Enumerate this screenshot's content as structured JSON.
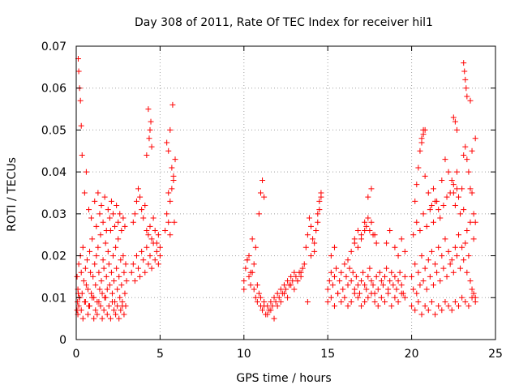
{
  "chart_data": {
    "type": "scatter",
    "title": "Day 308 of 2011, Rate Of TEC Index for receiver hil1",
    "xlabel": "GPS time / hours",
    "ylabel": "ROTI / TECUs",
    "xlim": [
      0,
      25
    ],
    "ylim": [
      0,
      0.07
    ],
    "xticks": [
      "0",
      "5",
      "10",
      "15",
      "20",
      "25"
    ],
    "yticks": [
      "0",
      "0.01",
      "0.02",
      "0.03",
      "0.04",
      "0.05",
      "0.06",
      "0.07"
    ],
    "grid": true,
    "marker": "plus",
    "color": "#ff0000",
    "series": [
      {
        "x": [
          0.05,
          0.1,
          0.15,
          0.2,
          0.25,
          0.3,
          0.35,
          0.4,
          0.45,
          0.5,
          0.55,
          0.6,
          0.65,
          0.7,
          0.75,
          0.8,
          0.85,
          0.9,
          0.95,
          1.0,
          1.05,
          1.1,
          1.15,
          1.2,
          1.25,
          1.3,
          1.35,
          1.4,
          1.45,
          1.5,
          1.55,
          1.6,
          1.65,
          1.7,
          1.75,
          1.8,
          1.85,
          1.9,
          1.95,
          2.0,
          2.05,
          2.1,
          2.15,
          2.2,
          2.25,
          2.3,
          2.35,
          2.4,
          2.45,
          2.5,
          2.55,
          2.6,
          2.65,
          2.7,
          2.75,
          2.8,
          2.85,
          2.9,
          2.95,
          3.0,
          0.12,
          0.15,
          0.2,
          0.25,
          0.3,
          0.35,
          0.5,
          0.6,
          0.75,
          0.9,
          1.1,
          1.2,
          1.3,
          1.4,
          1.5,
          1.6,
          1.7,
          1.8,
          1.9,
          2.0,
          2.1,
          2.2,
          2.3,
          2.4,
          2.5,
          2.6,
          2.7,
          2.8,
          2.9,
          0.05,
          0.08,
          0.1,
          0.12,
          0.15,
          0.18,
          0.3,
          0.4,
          0.55,
          0.7,
          0.8,
          0.95,
          1.05,
          1.15,
          1.25,
          1.35,
          1.45,
          1.55,
          1.65,
          1.75,
          1.85,
          1.95,
          2.05,
          2.15,
          2.25,
          2.35,
          2.45,
          2.55,
          2.65,
          2.75,
          2.85,
          2.95,
          3.3,
          3.4,
          3.5,
          3.6,
          3.7,
          3.8,
          3.9,
          4.0,
          4.1,
          4.2,
          4.3,
          4.4,
          4.5,
          4.6,
          4.7,
          4.8,
          4.9,
          5.0,
          3.4,
          3.5,
          3.6,
          3.7,
          3.8,
          3.9,
          4.0,
          4.1,
          4.2,
          4.3,
          4.4,
          4.5,
          4.6,
          4.7,
          4.8,
          4.9,
          5.0,
          4.3,
          4.4,
          4.5,
          4.2,
          4.35,
          4.45,
          5.3,
          5.4,
          5.5,
          5.6,
          5.7,
          5.8,
          5.9,
          5.4,
          5.5,
          5.6,
          5.7,
          5.8,
          5.5,
          5.6,
          5.75,
          5.85,
          10.0,
          10.1,
          10.2,
          10.3,
          10.4,
          10.5,
          10.6,
          10.7,
          10.8,
          10.9,
          11.0,
          11.1,
          11.2,
          11.3,
          11.4,
          11.5,
          11.6,
          11.7,
          11.8,
          11.9,
          12.0,
          12.1,
          12.2,
          12.3,
          12.4,
          12.5,
          12.6,
          12.7,
          12.8,
          12.9,
          13.0,
          13.1,
          13.2,
          13.3,
          13.4,
          13.5,
          10.0,
          10.2,
          10.4,
          10.6,
          10.8,
          11.0,
          11.2,
          11.4,
          11.6,
          11.8,
          12.0,
          12.2,
          12.4,
          12.6,
          12.8,
          13.0,
          13.2,
          13.4,
          10.3,
          10.5,
          10.7,
          10.9,
          11.0,
          11.1,
          11.2,
          13.6,
          13.7,
          13.8,
          13.9,
          14.0,
          14.1,
          14.2,
          14.3,
          14.4,
          14.5,
          14.6,
          13.8,
          14.0,
          14.2,
          14.4,
          14.5,
          14.6,
          15.0,
          15.1,
          15.2,
          15.3,
          15.4,
          15.5,
          15.6,
          15.7,
          15.8,
          15.9,
          16.0,
          16.1,
          16.2,
          16.3,
          16.4,
          16.5,
          16.6,
          16.7,
          16.8,
          16.9,
          17.0,
          17.1,
          17.2,
          17.3,
          17.4,
          17.5,
          17.6,
          17.7,
          17.8,
          17.9,
          18.0,
          18.1,
          18.2,
          18.3,
          18.4,
          18.5,
          18.6,
          18.7,
          18.8,
          18.9,
          19.0,
          19.1,
          19.2,
          19.3,
          19.4,
          19.5,
          19.6,
          15.0,
          15.2,
          15.4,
          15.6,
          15.8,
          16.0,
          16.2,
          16.4,
          16.6,
          16.8,
          17.0,
          17.2,
          17.4,
          17.6,
          17.8,
          18.0,
          18.2,
          18.4,
          18.6,
          18.8,
          19.0,
          19.2,
          19.4,
          19.6,
          15.2,
          15.4,
          16.6,
          16.8,
          17.0,
          17.2,
          17.3,
          17.4,
          17.5,
          17.6,
          17.7,
          18.5,
          18.7,
          19.0,
          19.2,
          19.4,
          19.6,
          16.2,
          16.4,
          16.6,
          16.8,
          17.0,
          17.2,
          17.4,
          17.6,
          17.8,
          17.9,
          20.0,
          20.1,
          20.2,
          20.3,
          20.4,
          20.5,
          20.6,
          20.7,
          20.8,
          20.9,
          21.0,
          21.1,
          21.2,
          21.3,
          21.4,
          21.5,
          21.6,
          21.7,
          21.8,
          21.9,
          22.0,
          22.1,
          22.2,
          22.3,
          22.4,
          22.5,
          22.6,
          22.7,
          22.8,
          22.9,
          23.0,
          23.1,
          23.2,
          23.3,
          23.4,
          23.5,
          23.6,
          23.7,
          23.8,
          20.0,
          20.2,
          20.4,
          20.6,
          20.8,
          21.0,
          21.2,
          21.4,
          21.6,
          21.8,
          22.0,
          22.2,
          22.4,
          22.6,
          22.8,
          23.0,
          23.2,
          23.4,
          23.6,
          23.8,
          20.1,
          20.3,
          20.5,
          20.7,
          20.9,
          21.1,
          21.3,
          21.5,
          21.7,
          21.9,
          22.1,
          22.3,
          22.5,
          22.7,
          22.9,
          23.1,
          23.3,
          23.5,
          23.7,
          20.2,
          20.3,
          20.4,
          20.5,
          20.6,
          20.7,
          20.8,
          21.0,
          21.2,
          21.3,
          21.4,
          21.6,
          21.8,
          22.0,
          22.2,
          22.4,
          22.5,
          22.6,
          22.7,
          22.8,
          23.0,
          23.1,
          23.2,
          23.3,
          23.4,
          23.5,
          23.6,
          23.7,
          23.8,
          20.6,
          20.7,
          20.8,
          22.5,
          22.6,
          22.7,
          23.1,
          23.15,
          23.2,
          23.25,
          23.3,
          23.5,
          23.6,
          23.8
        ],
        "y": [
          0.015,
          0.012,
          0.018,
          0.01,
          0.02,
          0.016,
          0.011,
          0.022,
          0.014,
          0.009,
          0.017,
          0.013,
          0.019,
          0.012,
          0.008,
          0.021,
          0.016,
          0.011,
          0.024,
          0.015,
          0.01,
          0.018,
          0.013,
          0.02,
          0.009,
          0.022,
          0.016,
          0.012,
          0.025,
          0.014,
          0.011,
          0.019,
          0.017,
          0.01,
          0.023,
          0.015,
          0.012,
          0.021,
          0.018,
          0.013,
          0.026,
          0.016,
          0.011,
          0.02,
          0.014,
          0.009,
          0.022,
          0.017,
          0.012,
          0.024,
          0.015,
          0.01,
          0.019,
          0.013,
          0.008,
          0.02,
          0.016,
          0.011,
          0.018,
          0.014,
          0.067,
          0.064,
          0.06,
          0.057,
          0.051,
          0.044,
          0.035,
          0.04,
          0.031,
          0.029,
          0.033,
          0.027,
          0.035,
          0.03,
          0.032,
          0.028,
          0.034,
          0.026,
          0.031,
          0.029,
          0.033,
          0.03,
          0.027,
          0.032,
          0.028,
          0.03,
          0.026,
          0.029,
          0.027,
          0.007,
          0.009,
          0.006,
          0.011,
          0.008,
          0.01,
          0.007,
          0.005,
          0.009,
          0.006,
          0.008,
          0.01,
          0.005,
          0.007,
          0.006,
          0.009,
          0.008,
          0.005,
          0.007,
          0.01,
          0.006,
          0.008,
          0.005,
          0.009,
          0.007,
          0.006,
          0.008,
          0.005,
          0.007,
          0.009,
          0.006,
          0.008,
          0.016,
          0.018,
          0.014,
          0.02,
          0.017,
          0.015,
          0.021,
          0.019,
          0.016,
          0.022,
          0.018,
          0.02,
          0.017,
          0.023,
          0.019,
          0.021,
          0.018,
          0.02,
          0.028,
          0.03,
          0.033,
          0.036,
          0.034,
          0.031,
          0.029,
          0.032,
          0.026,
          0.025,
          0.027,
          0.024,
          0.029,
          0.026,
          0.023,
          0.025,
          0.022,
          0.055,
          0.05,
          0.046,
          0.044,
          0.048,
          0.052,
          0.026,
          0.03,
          0.028,
          0.033,
          0.036,
          0.039,
          0.043,
          0.047,
          0.045,
          0.05,
          0.041,
          0.038,
          0.035,
          0.025,
          0.056,
          0.028,
          0.014,
          0.017,
          0.019,
          0.015,
          0.013,
          0.016,
          0.012,
          0.01,
          0.009,
          0.011,
          0.008,
          0.007,
          0.009,
          0.006,
          0.008,
          0.007,
          0.009,
          0.008,
          0.01,
          0.009,
          0.011,
          0.01,
          0.012,
          0.011,
          0.013,
          0.012,
          0.014,
          0.013,
          0.015,
          0.014,
          0.016,
          0.015,
          0.014,
          0.016,
          0.015,
          0.017,
          0.012,
          0.019,
          0.016,
          0.018,
          0.013,
          0.01,
          0.008,
          0.006,
          0.007,
          0.005,
          0.008,
          0.009,
          0.011,
          0.01,
          0.013,
          0.012,
          0.014,
          0.016,
          0.02,
          0.024,
          0.022,
          0.03,
          0.035,
          0.038,
          0.034,
          0.018,
          0.022,
          0.025,
          0.029,
          0.027,
          0.024,
          0.021,
          0.026,
          0.03,
          0.033,
          0.035,
          0.009,
          0.02,
          0.023,
          0.028,
          0.031,
          0.034,
          0.012,
          0.014,
          0.016,
          0.013,
          0.015,
          0.017,
          0.011,
          0.014,
          0.016,
          0.012,
          0.018,
          0.015,
          0.013,
          0.017,
          0.014,
          0.016,
          0.012,
          0.015,
          0.013,
          0.011,
          0.014,
          0.016,
          0.013,
          0.012,
          0.015,
          0.017,
          0.014,
          0.013,
          0.011,
          0.015,
          0.012,
          0.016,
          0.014,
          0.013,
          0.015,
          0.017,
          0.012,
          0.014,
          0.016,
          0.013,
          0.015,
          0.012,
          0.014,
          0.016,
          0.013,
          0.011,
          0.015,
          0.009,
          0.01,
          0.008,
          0.011,
          0.009,
          0.01,
          0.008,
          0.009,
          0.011,
          0.01,
          0.008,
          0.009,
          0.01,
          0.011,
          0.009,
          0.008,
          0.01,
          0.009,
          0.011,
          0.008,
          0.01,
          0.009,
          0.011,
          0.01,
          0.02,
          0.022,
          0.024,
          0.026,
          0.025,
          0.028,
          0.027,
          0.029,
          0.026,
          0.028,
          0.025,
          0.023,
          0.026,
          0.022,
          0.02,
          0.024,
          0.021,
          0.019,
          0.021,
          0.023,
          0.022,
          0.024,
          0.026,
          0.034,
          0.036,
          0.025,
          0.023,
          0.015,
          0.012,
          0.018,
          0.011,
          0.016,
          0.013,
          0.02,
          0.014,
          0.017,
          0.012,
          0.019,
          0.015,
          0.021,
          0.013,
          0.018,
          0.016,
          0.022,
          0.014,
          0.02,
          0.017,
          0.024,
          0.015,
          0.021,
          0.018,
          0.019,
          0.016,
          0.022,
          0.02,
          0.025,
          0.017,
          0.022,
          0.019,
          0.023,
          0.016,
          0.02,
          0.014,
          0.012,
          0.011,
          0.01,
          0.008,
          0.007,
          0.009,
          0.006,
          0.008,
          0.007,
          0.009,
          0.006,
          0.008,
          0.007,
          0.009,
          0.008,
          0.007,
          0.009,
          0.008,
          0.01,
          0.009,
          0.008,
          0.01,
          0.009,
          0.025,
          0.028,
          0.026,
          0.03,
          0.027,
          0.031,
          0.028,
          0.033,
          0.029,
          0.032,
          0.034,
          0.035,
          0.037,
          0.036,
          0.03,
          0.031,
          0.026,
          0.028,
          0.024,
          0.033,
          0.037,
          0.041,
          0.045,
          0.048,
          0.05,
          0.039,
          0.035,
          0.032,
          0.036,
          0.033,
          0.031,
          0.038,
          0.043,
          0.04,
          0.038,
          0.035,
          0.032,
          0.04,
          0.034,
          0.036,
          0.044,
          0.046,
          0.043,
          0.04,
          0.036,
          0.035,
          0.03,
          0.028,
          0.047,
          0.049,
          0.05,
          0.053,
          0.052,
          0.05,
          0.066,
          0.064,
          0.062,
          0.06,
          0.058,
          0.057,
          0.045,
          0.048
        ]
      }
    ]
  }
}
